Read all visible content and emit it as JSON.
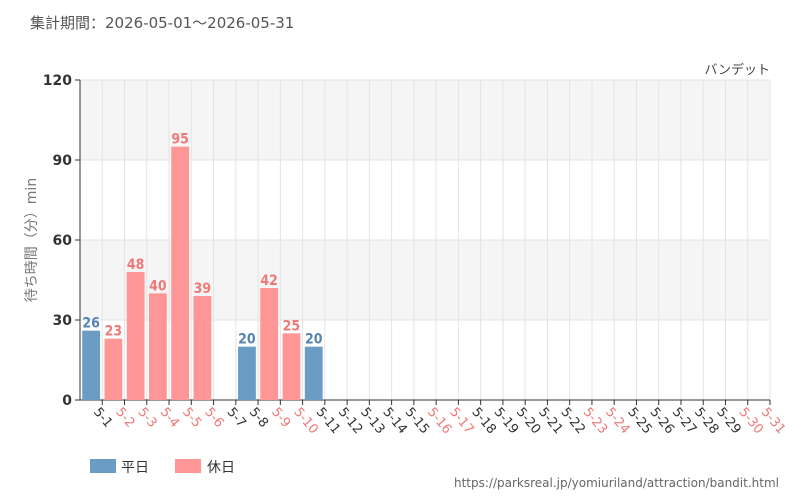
{
  "header": {
    "period": "集計期間：2026-05-01～2026-05-31",
    "attraction": "バンデット"
  },
  "legend": [
    {
      "label": "平日",
      "color": "#6a9cc4"
    },
    {
      "label": "休日",
      "color": "#ff9696"
    }
  ],
  "source": "https://parksreal.jp/yomiuriland/attraction/bandit.html",
  "colors": {
    "weekday_bar": "#6a9cc4",
    "holiday_bar": "#ff9696",
    "weekday_label": "#5584b2",
    "holiday_label": "#f07878",
    "weekday_tick": "#333333",
    "holiday_tick": "#f07878",
    "band": "#f5f5f5",
    "grid": "#e4e4e4"
  },
  "chart_data": {
    "type": "bar",
    "ylabel": "待ち時間（分）min",
    "ylim": [
      0,
      120
    ],
    "yticks": [
      0,
      30,
      60,
      90,
      120
    ],
    "grid": true,
    "legend_position": "bottom-left",
    "categories": [
      "5-1",
      "5-2",
      "5-3",
      "5-4",
      "5-5",
      "5-6",
      "5-7",
      "5-8",
      "5-9",
      "5-10",
      "5-11",
      "5-12",
      "5-13",
      "5-14",
      "5-15",
      "5-16",
      "5-17",
      "5-18",
      "5-19",
      "5-20",
      "5-21",
      "5-22",
      "5-23",
      "5-24",
      "5-25",
      "5-26",
      "5-27",
      "5-28",
      "5-29",
      "5-30",
      "5-31"
    ],
    "day_type": [
      "平日",
      "休日",
      "休日",
      "休日",
      "休日",
      "休日",
      "平日",
      "平日",
      "休日",
      "休日",
      "平日",
      "平日",
      "平日",
      "平日",
      "平日",
      "休日",
      "休日",
      "平日",
      "平日",
      "平日",
      "平日",
      "平日",
      "休日",
      "休日",
      "平日",
      "平日",
      "平日",
      "平日",
      "平日",
      "休日",
      "休日"
    ],
    "values": [
      26,
      23,
      48,
      40,
      95,
      39,
      null,
      20,
      42,
      25,
      20,
      null,
      null,
      null,
      null,
      null,
      null,
      null,
      null,
      null,
      null,
      null,
      null,
      null,
      null,
      null,
      null,
      null,
      null,
      null,
      null
    ]
  }
}
